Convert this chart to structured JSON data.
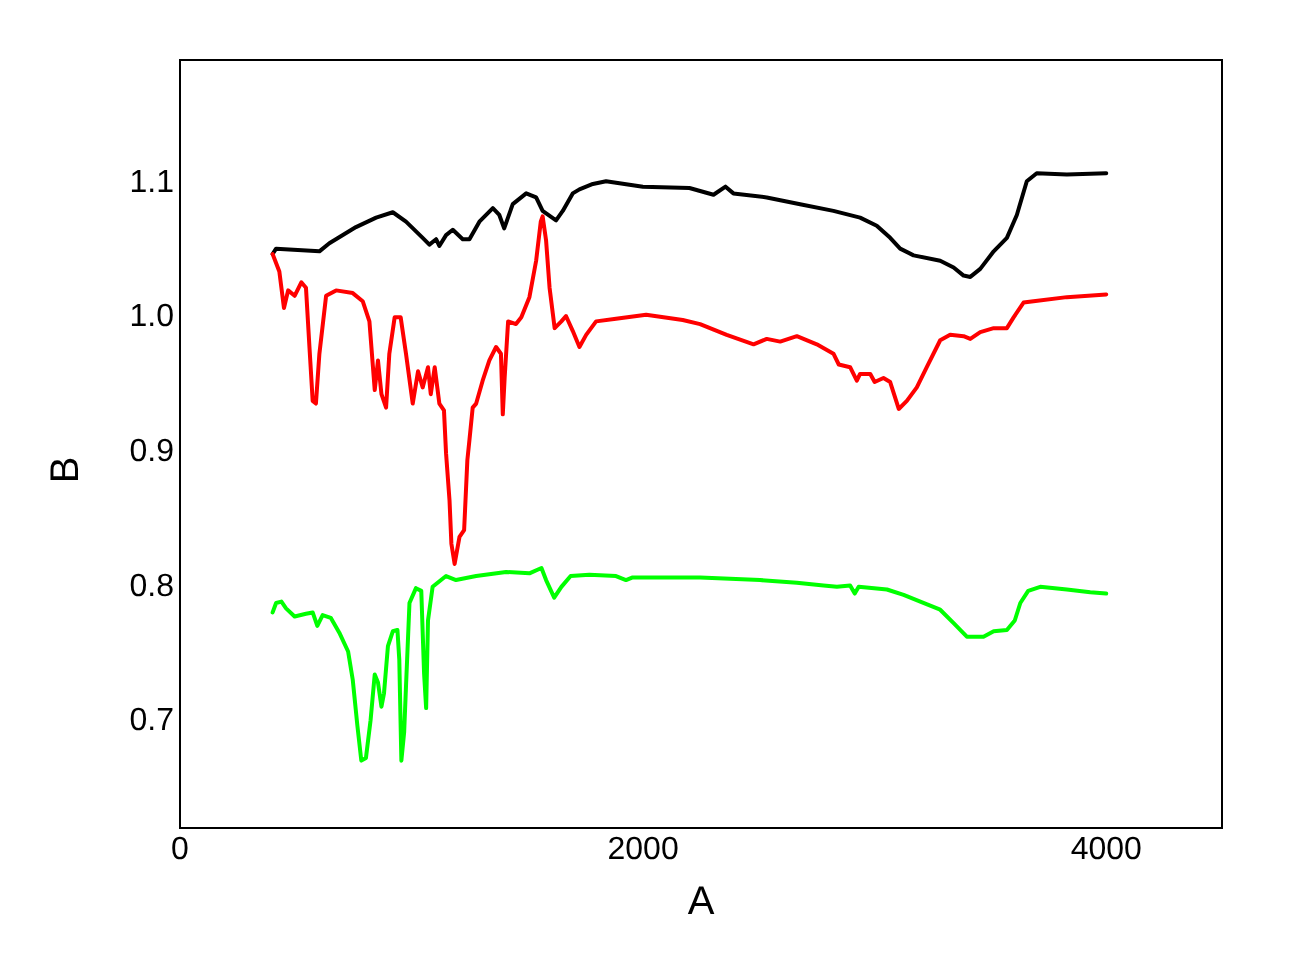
{
  "chart_data": {
    "type": "line",
    "xlabel": "A",
    "ylabel": "B",
    "xlim": [
      0,
      4500
    ],
    "ylim": [
      0.62,
      1.19
    ],
    "xticks": [
      0,
      2000,
      4000
    ],
    "yticks": [
      0.7,
      0.8,
      0.9,
      {
        "value": 1,
        "label": "1.0"
      },
      1.1
    ],
    "line_style": "solid",
    "series": [
      {
        "color": "#000000",
        "x": [
          400,
          415,
          602,
          645,
          760,
          847,
          919,
          976,
          1048,
          1077,
          1106,
          1120,
          1149,
          1178,
          1221,
          1250,
          1293,
          1351,
          1379,
          1400,
          1437,
          1495,
          1538,
          1566,
          1624,
          1653,
          1696,
          1725,
          1783,
          1840,
          1999,
          2200,
          2304,
          2356,
          2390,
          2534,
          2678,
          2822,
          2937,
          3009,
          3067,
          3110,
          3168,
          3283,
          3341,
          3384,
          3413,
          3456,
          3514,
          3571,
          3614,
          3657,
          3700,
          3830,
          4000
        ],
        "values": [
          1.046,
          1.05,
          1.048,
          1.054,
          1.066,
          1.073,
          1.077,
          1.07,
          1.058,
          1.053,
          1.057,
          1.052,
          1.06,
          1.064,
          1.057,
          1.057,
          1.07,
          1.08,
          1.075,
          1.065,
          1.083,
          1.091,
          1.088,
          1.078,
          1.071,
          1.078,
          1.091,
          1.094,
          1.098,
          1.1,
          1.096,
          1.095,
          1.09,
          1.096,
          1.091,
          1.088,
          1.083,
          1.078,
          1.073,
          1.067,
          1.058,
          1.05,
          1.045,
          1.041,
          1.036,
          1.03,
          1.029,
          1.035,
          1.048,
          1.058,
          1.075,
          1.1,
          1.106,
          1.105,
          1.106
        ]
      },
      {
        "color": "#ff0000",
        "x": [
          400,
          429,
          449,
          467,
          495,
          524,
          544,
          559,
          573,
          587,
          602,
          631,
          674,
          746,
          789,
          818,
          841,
          855,
          870,
          890,
          904,
          927,
          953,
          976,
          1005,
          1028,
          1048,
          1071,
          1083,
          1100,
          1120,
          1140,
          1149,
          1164,
          1172,
          1186,
          1207,
          1227,
          1241,
          1250,
          1264,
          1279,
          1307,
          1336,
          1365,
          1386,
          1394,
          1402,
          1417,
          1451,
          1474,
          1509,
          1538,
          1558,
          1566,
          1581,
          1596,
          1618,
          1647,
          1667,
          1696,
          1725,
          1754,
          1797,
          1883,
          2013,
          2171,
          2246,
          2361,
          2477,
          2534,
          2592,
          2664,
          2750,
          2822,
          2845,
          2894,
          2923,
          2937,
          2981,
          3000,
          3038,
          3067,
          3104,
          3139,
          3182,
          3225,
          3283,
          3326,
          3384,
          3413,
          3456,
          3514,
          3571,
          3600,
          3643,
          3686,
          3830,
          4000
        ],
        "values": [
          1.046,
          1.033,
          1.006,
          1.019,
          1.015,
          1.025,
          1.021,
          0.977,
          0.937,
          0.935,
          0.972,
          1.015,
          1.019,
          1.017,
          1.011,
          0.996,
          0.945,
          0.967,
          0.942,
          0.932,
          0.972,
          0.999,
          0.999,
          0.972,
          0.935,
          0.959,
          0.947,
          0.962,
          0.942,
          0.962,
          0.935,
          0.93,
          0.898,
          0.863,
          0.831,
          0.816,
          0.836,
          0.841,
          0.893,
          0.908,
          0.932,
          0.935,
          0.952,
          0.967,
          0.977,
          0.972,
          0.927,
          0.954,
          0.996,
          0.994,
          0.999,
          1.014,
          1.041,
          1.07,
          1.074,
          1.056,
          1.021,
          0.991,
          0.996,
          1.0,
          0.989,
          0.977,
          0.986,
          0.996,
          0.998,
          1.001,
          0.997,
          0.994,
          0.986,
          0.979,
          0.983,
          0.981,
          0.985,
          0.979,
          0.972,
          0.964,
          0.962,
          0.952,
          0.957,
          0.957,
          0.951,
          0.954,
          0.951,
          0.931,
          0.937,
          0.947,
          0.962,
          0.982,
          0.986,
          0.985,
          0.983,
          0.988,
          0.991,
          0.991,
          0.999,
          1.01,
          1.011,
          1.014,
          1.016
        ]
      },
      {
        "color": "#00ff00",
        "x": [
          400,
          415,
          438,
          458,
          495,
          544,
          573,
          593,
          616,
          651,
          688,
          726,
          746,
          766,
          783,
          803,
          823,
          841,
          855,
          870,
          881,
          898,
          919,
          939,
          947,
          956,
          968,
          976,
          991,
          1019,
          1042,
          1054,
          1063,
          1071,
          1091,
          1134,
          1149,
          1192,
          1279,
          1408,
          1509,
          1561,
          1581,
          1616,
          1647,
          1687,
          1768,
          1883,
          1926,
          1955,
          2246,
          2505,
          2664,
          2779,
          2837,
          2894,
          2914,
          2931,
          3053,
          3125,
          3197,
          3283,
          3341,
          3398,
          3470,
          3514,
          3571,
          3605,
          3629,
          3663,
          3715,
          3830,
          3931,
          4000
        ],
        "values": [
          0.78,
          0.787,
          0.788,
          0.783,
          0.777,
          0.779,
          0.78,
          0.77,
          0.778,
          0.776,
          0.765,
          0.751,
          0.73,
          0.696,
          0.67,
          0.672,
          0.7,
          0.734,
          0.728,
          0.71,
          0.72,
          0.755,
          0.766,
          0.767,
          0.745,
          0.67,
          0.691,
          0.725,
          0.787,
          0.798,
          0.796,
          0.735,
          0.709,
          0.774,
          0.799,
          0.805,
          0.807,
          0.804,
          0.807,
          0.81,
          0.809,
          0.813,
          0.804,
          0.791,
          0.799,
          0.807,
          0.808,
          0.807,
          0.804,
          0.806,
          0.806,
          0.804,
          0.802,
          0.8,
          0.799,
          0.8,
          0.794,
          0.799,
          0.797,
          0.793,
          0.788,
          0.782,
          0.772,
          0.762,
          0.762,
          0.766,
          0.767,
          0.774,
          0.787,
          0.796,
          0.799,
          0.797,
          0.795,
          0.794
        ]
      }
    ]
  }
}
